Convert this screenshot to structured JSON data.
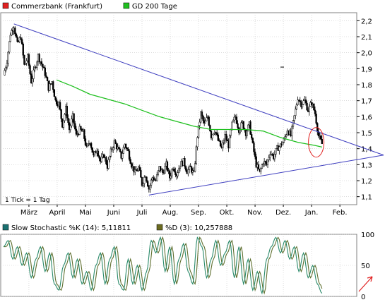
{
  "legend_top": [
    {
      "label": "Commerzbank (Frankfurt)",
      "color": "#e02020"
    },
    {
      "label": "GD 200 Tage",
      "color": "#20c020"
    }
  ],
  "tick_note": "1 Tick = 1 Tag",
  "legend_bottom": [
    {
      "label": "Slow Stochastic %K (14): 5,11811",
      "color": "#1a7070"
    },
    {
      "label": "%D (3): 10,257888",
      "color": "#6b6b20"
    }
  ],
  "colors": {
    "candle": "#000000",
    "candle_up": "#ffffff",
    "ma": "#20c020",
    "trendline": "#4040c0",
    "circle": "#e02020",
    "arrow": "#e02020",
    "stoch_k": "#2a8a6a",
    "stoch_d": "#607030",
    "grid": "#c8c8c8"
  },
  "chart_data": [
    {
      "type": "candlestick",
      "x_ticks": [
        "März",
        "April",
        "Mai",
        "Juni",
        "Juli",
        "Aug.",
        "Sep.",
        "Okt.",
        "Nov.",
        "Dez.",
        "Jan.",
        "Feb."
      ],
      "y_ticks": [
        "1,1",
        "1,2",
        "1,3",
        "1,4",
        "1,5",
        "1,6",
        "1,7",
        "1,8",
        "1,9",
        "2,0",
        "2,1",
        "2,2"
      ],
      "y_values": [
        1.1,
        1.2,
        1.3,
        1.4,
        1.5,
        1.6,
        1.7,
        1.8,
        1.9,
        2.0,
        2.1,
        2.2
      ],
      "ylim": [
        1.05,
        2.25
      ],
      "close_path": [
        [
          0,
          1.86
        ],
        [
          3,
          1.95
        ],
        [
          6,
          2.12
        ],
        [
          9,
          2.17
        ],
        [
          12,
          2.05
        ],
        [
          15,
          2.1
        ],
        [
          18,
          1.92
        ],
        [
          21,
          1.97
        ],
        [
          24,
          1.82
        ],
        [
          27,
          1.9
        ],
        [
          30,
          1.98
        ],
        [
          33,
          1.93
        ],
        [
          36,
          1.87
        ],
        [
          39,
          1.78
        ],
        [
          42,
          1.82
        ],
        [
          45,
          1.7
        ],
        [
          48,
          1.68
        ],
        [
          51,
          1.55
        ],
        [
          54,
          1.65
        ],
        [
          57,
          1.52
        ],
        [
          60,
          1.6
        ],
        [
          63,
          1.48
        ],
        [
          66,
          1.52
        ],
        [
          69,
          1.5
        ],
        [
          72,
          1.4
        ],
        [
          75,
          1.45
        ],
        [
          78,
          1.35
        ],
        [
          81,
          1.4
        ],
        [
          84,
          1.32
        ],
        [
          87,
          1.36
        ],
        [
          90,
          1.29
        ],
        [
          93,
          1.38
        ],
        [
          96,
          1.44
        ],
        [
          99,
          1.4
        ],
        [
          102,
          1.35
        ],
        [
          105,
          1.43
        ],
        [
          108,
          1.38
        ],
        [
          111,
          1.3
        ],
        [
          114,
          1.25
        ],
        [
          117,
          1.28
        ],
        [
          120,
          1.18
        ],
        [
          123,
          1.24
        ],
        [
          126,
          1.15
        ],
        [
          129,
          1.22
        ],
        [
          132,
          1.2
        ],
        [
          135,
          1.28
        ],
        [
          138,
          1.25
        ],
        [
          141,
          1.3
        ],
        [
          144,
          1.22
        ],
        [
          147,
          1.29
        ],
        [
          150,
          1.24
        ],
        [
          153,
          1.3
        ],
        [
          156,
          1.32
        ],
        [
          159,
          1.26
        ],
        [
          162,
          1.28
        ],
        [
          165,
          1.24
        ],
        [
          168,
          1.48
        ],
        [
          171,
          1.62
        ],
        [
          174,
          1.55
        ],
        [
          177,
          1.6
        ],
        [
          180,
          1.48
        ],
        [
          183,
          1.52
        ],
        [
          186,
          1.45
        ],
        [
          189,
          1.4
        ],
        [
          192,
          1.48
        ],
        [
          195,
          1.42
        ],
        [
          198,
          1.55
        ],
        [
          201,
          1.6
        ],
        [
          204,
          1.52
        ],
        [
          207,
          1.56
        ],
        [
          210,
          1.5
        ],
        [
          213,
          1.55
        ],
        [
          216,
          1.42
        ],
        [
          219,
          1.3
        ],
        [
          222,
          1.25
        ],
        [
          225,
          1.32
        ],
        [
          228,
          1.3
        ],
        [
          231,
          1.38
        ],
        [
          234,
          1.35
        ],
        [
          237,
          1.4
        ],
        [
          240,
          1.42
        ],
        [
          243,
          1.45
        ],
        [
          246,
          1.52
        ],
        [
          249,
          1.48
        ],
        [
          252,
          1.6
        ],
        [
          255,
          1.72
        ],
        [
          258,
          1.68
        ],
        [
          261,
          1.7
        ],
        [
          264,
          1.64
        ],
        [
          267,
          1.69
        ],
        [
          270,
          1.62
        ],
        [
          273,
          1.48
        ],
        [
          276,
          1.43
        ]
      ],
      "ma_path": [
        [
          46,
          1.83
        ],
        [
          60,
          1.79
        ],
        [
          75,
          1.74
        ],
        [
          90,
          1.71
        ],
        [
          105,
          1.68
        ],
        [
          120,
          1.64
        ],
        [
          135,
          1.6
        ],
        [
          150,
          1.57
        ],
        [
          165,
          1.54
        ],
        [
          180,
          1.52
        ],
        [
          195,
          1.52
        ],
        [
          210,
          1.52
        ],
        [
          225,
          1.51
        ],
        [
          240,
          1.47
        ],
        [
          255,
          1.44
        ],
        [
          270,
          1.42
        ],
        [
          276,
          1.41
        ]
      ],
      "trendlines": [
        {
          "from": [
            9,
            2.18
          ],
          "to": [
            300,
            1.36
          ]
        },
        {
          "from": [
            126,
            1.11
          ],
          "to": [
            300,
            1.36
          ]
        }
      ],
      "circle": {
        "x": 271,
        "y": 1.44
      }
    },
    {
      "type": "line",
      "y_ticks": [
        "0",
        "50",
        "100"
      ],
      "y_values": [
        0,
        50,
        100
      ],
      "ylim": [
        0,
        100
      ],
      "k_path": [
        [
          0,
          80
        ],
        [
          4,
          90
        ],
        [
          8,
          60
        ],
        [
          12,
          80
        ],
        [
          16,
          50
        ],
        [
          20,
          70
        ],
        [
          24,
          30
        ],
        [
          28,
          60
        ],
        [
          32,
          80
        ],
        [
          36,
          40
        ],
        [
          40,
          70
        ],
        [
          44,
          20
        ],
        [
          48,
          10
        ],
        [
          52,
          50
        ],
        [
          56,
          70
        ],
        [
          60,
          30
        ],
        [
          64,
          60
        ],
        [
          68,
          20
        ],
        [
          72,
          40
        ],
        [
          76,
          10
        ],
        [
          80,
          50
        ],
        [
          84,
          70
        ],
        [
          88,
          20
        ],
        [
          92,
          60
        ],
        [
          96,
          80
        ],
        [
          100,
          20
        ],
        [
          104,
          10
        ],
        [
          108,
          60
        ],
        [
          112,
          20
        ],
        [
          116,
          50
        ],
        [
          120,
          10
        ],
        [
          124,
          40
        ],
        [
          128,
          90
        ],
        [
          132,
          70
        ],
        [
          136,
          95
        ],
        [
          140,
          40
        ],
        [
          144,
          80
        ],
        [
          148,
          20
        ],
        [
          152,
          60
        ],
        [
          156,
          85
        ],
        [
          160,
          40
        ],
        [
          164,
          20
        ],
        [
          168,
          95
        ],
        [
          172,
          80
        ],
        [
          176,
          30
        ],
        [
          180,
          60
        ],
        [
          184,
          90
        ],
        [
          188,
          50
        ],
        [
          192,
          70
        ],
        [
          196,
          90
        ],
        [
          200,
          30
        ],
        [
          204,
          80
        ],
        [
          208,
          20
        ],
        [
          212,
          60
        ],
        [
          216,
          10
        ],
        [
          220,
          40
        ],
        [
          224,
          5
        ],
        [
          228,
          60
        ],
        [
          232,
          80
        ],
        [
          236,
          95
        ],
        [
          240,
          70
        ],
        [
          244,
          90
        ],
        [
          248,
          60
        ],
        [
          252,
          80
        ],
        [
          256,
          40
        ],
        [
          260,
          70
        ],
        [
          264,
          30
        ],
        [
          268,
          50
        ],
        [
          272,
          20
        ],
        [
          276,
          5
        ]
      ]
    }
  ]
}
